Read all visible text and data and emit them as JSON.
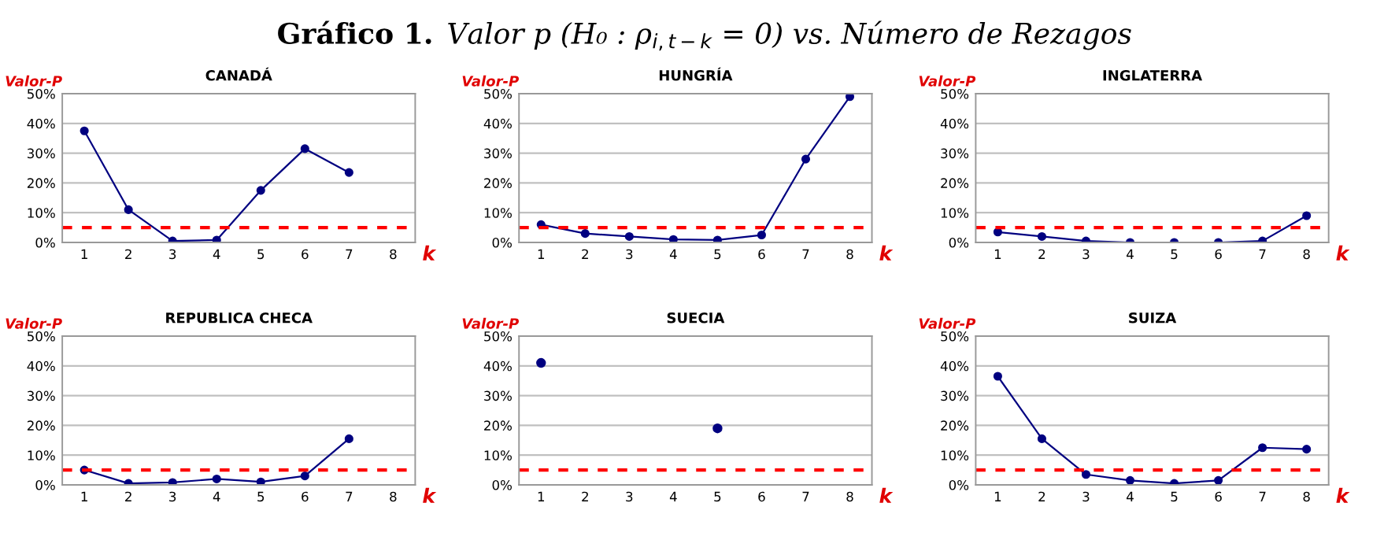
{
  "chart_data": [
    {
      "type": "line",
      "title": "CANADÁ",
      "annotations": [
        "Gráfico 1.",
        "Valor p (H₀ : ρ$_{i,t−k}$ = 0) vs. Número de Rezagos"
      ],
      "ylabel": "Valor-P",
      "xlabel": "k",
      "categories": [
        "1",
        "2",
        "3",
        "4",
        "5",
        "6",
        "7",
        "8"
      ],
      "series": [
        {
          "color": "#000080",
          "values": [
            37.5,
            11,
            0.5,
            0.8,
            17.5,
            31.5,
            23.5,
            null
          ]
        }
      ],
      "ylim": [
        0,
        50
      ],
      "yticks": [
        {
          "value": 0,
          "label": "0%"
        },
        {
          "value": 10,
          "label": "10%"
        },
        {
          "value": 20,
          "label": "20%"
        },
        {
          "value": 30,
          "label": "30%"
        },
        {
          "value": 40,
          "label": "40%"
        },
        {
          "value": 50,
          "label": "50%"
        }
      ],
      "grid": "y",
      "marker": "circle",
      "line_style": "solid",
      "ref_lines": [
        {
          "axis": "y",
          "value": 5,
          "color": "#ff0000",
          "line_style": "dashed"
        }
      ]
    },
    {
      "type": "line",
      "title": "HUNGRÍA",
      "ylabel": "Valor-P",
      "xlabel": "k",
      "categories": [
        "1",
        "2",
        "3",
        "4",
        "5",
        "6",
        "7",
        "8"
      ],
      "series": [
        {
          "color": "#000080",
          "values": [
            6,
            3,
            2,
            1,
            0.8,
            2.5,
            28,
            49
          ]
        }
      ],
      "ylim": [
        0,
        50
      ],
      "yticks": [
        {
          "value": 0,
          "label": "0%"
        },
        {
          "value": 10,
          "label": "10%"
        },
        {
          "value": 20,
          "label": "20%"
        },
        {
          "value": 30,
          "label": "30%"
        },
        {
          "value": 40,
          "label": "40%"
        },
        {
          "value": 50,
          "label": "50%"
        }
      ],
      "grid": "y",
      "marker": "circle",
      "line_style": "solid",
      "ref_lines": [
        {
          "axis": "y",
          "value": 5,
          "color": "#ff0000",
          "line_style": "dashed"
        }
      ]
    },
    {
      "type": "line",
      "title": "INGLATERRA",
      "ylabel": "Valor-P",
      "xlabel": "k",
      "categories": [
        "1",
        "2",
        "3",
        "4",
        "5",
        "6",
        "7",
        "8"
      ],
      "series": [
        {
          "color": "#000080",
          "values": [
            3.5,
            2,
            0.5,
            0,
            0,
            0,
            0.5,
            9
          ]
        }
      ],
      "ylim": [
        0,
        50
      ],
      "yticks": [
        {
          "value": 0,
          "label": "0%"
        },
        {
          "value": 10,
          "label": "10%"
        },
        {
          "value": 20,
          "label": "20%"
        },
        {
          "value": 30,
          "label": "30%"
        },
        {
          "value": 40,
          "label": "40%"
        },
        {
          "value": 50,
          "label": "50%"
        }
      ],
      "grid": "y",
      "marker": "circle",
      "line_style": "solid",
      "ref_lines": [
        {
          "axis": "y",
          "value": 5,
          "color": "#ff0000",
          "line_style": "dashed"
        }
      ]
    },
    {
      "type": "line",
      "title": "REPUBLICA CHECA",
      "ylabel": "Valor-P",
      "xlabel": "k",
      "categories": [
        "1",
        "2",
        "3",
        "4",
        "5",
        "6",
        "7",
        "8"
      ],
      "series": [
        {
          "color": "#000080",
          "values": [
            5,
            0.5,
            0.8,
            2,
            1,
            3,
            15.5,
            null
          ]
        }
      ],
      "ylim": [
        0,
        50
      ],
      "yticks": [
        {
          "value": 0,
          "label": "0%"
        },
        {
          "value": 10,
          "label": "10%"
        },
        {
          "value": 20,
          "label": "20%"
        },
        {
          "value": 30,
          "label": "30%"
        },
        {
          "value": 40,
          "label": "40%"
        },
        {
          "value": 50,
          "label": "50%"
        }
      ],
      "grid": "y",
      "marker": "circle",
      "line_style": "solid",
      "ref_lines": [
        {
          "axis": "y",
          "value": 5,
          "color": "#ff0000",
          "line_style": "dashed"
        }
      ]
    },
    {
      "type": "scatter",
      "title": "SUECIA",
      "ylabel": "Valor-P",
      "xlabel": "k",
      "categories": [
        "1",
        "2",
        "3",
        "4",
        "5",
        "6",
        "7",
        "8"
      ],
      "series": [
        {
          "color": "#000080",
          "values": [
            41,
            null,
            null,
            null,
            19,
            null,
            null,
            null
          ]
        }
      ],
      "ylim": [
        0,
        50
      ],
      "yticks": [
        {
          "value": 0,
          "label": "0%"
        },
        {
          "value": 10,
          "label": "10%"
        },
        {
          "value": 20,
          "label": "20%"
        },
        {
          "value": 30,
          "label": "30%"
        },
        {
          "value": 40,
          "label": "40%"
        },
        {
          "value": 50,
          "label": "50%"
        }
      ],
      "grid": "y",
      "marker": "circle",
      "ref_lines": [
        {
          "axis": "y",
          "value": 5,
          "color": "#ff0000",
          "line_style": "dashed"
        }
      ]
    },
    {
      "type": "line",
      "title": "SUIZA",
      "ylabel": "Valor-P",
      "xlabel": "k",
      "categories": [
        "1",
        "2",
        "3",
        "4",
        "5",
        "6",
        "7",
        "8"
      ],
      "series": [
        {
          "color": "#000080",
          "values": [
            36.5,
            15.5,
            3.5,
            1.5,
            0.5,
            1.5,
            12.5,
            12
          ]
        }
      ],
      "ylim": [
        0,
        50
      ],
      "yticks": [
        {
          "value": 0,
          "label": "0%"
        },
        {
          "value": 10,
          "label": "10%"
        },
        {
          "value": 20,
          "label": "20%"
        },
        {
          "value": 30,
          "label": "30%"
        },
        {
          "value": 40,
          "label": "40%"
        },
        {
          "value": 50,
          "label": "50%"
        }
      ],
      "grid": "y",
      "marker": "circle",
      "line_style": "solid",
      "ref_lines": [
        {
          "axis": "y",
          "value": 5,
          "color": "#ff0000",
          "line_style": "dashed"
        }
      ]
    }
  ]
}
